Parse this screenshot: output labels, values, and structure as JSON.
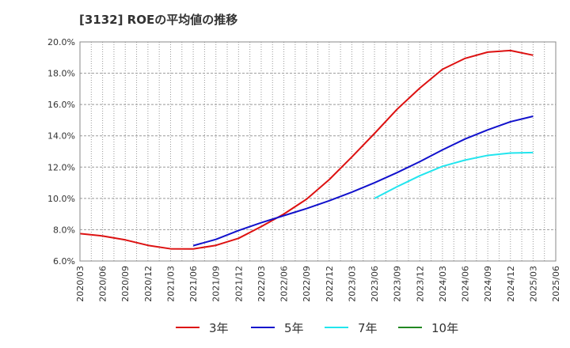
{
  "chart_data": {
    "type": "line",
    "title": "[3132]  ROEの平均値の推移",
    "xlabel": "",
    "ylabel": "",
    "x": [
      "2020/03",
      "2020/06",
      "2020/09",
      "2020/12",
      "2021/03",
      "2021/06",
      "2021/09",
      "2021/12",
      "2022/03",
      "2022/06",
      "2022/09",
      "2022/12",
      "2023/03",
      "2023/06",
      "2023/09",
      "2023/12",
      "2024/03",
      "2024/06",
      "2024/09",
      "2024/12",
      "2025/03",
      "2025/06"
    ],
    "ylim": [
      6.0,
      20.0
    ],
    "yticks": [
      6.0,
      8.0,
      10.0,
      12.0,
      14.0,
      16.0,
      18.0,
      20.0
    ],
    "ytick_labels": [
      "6.0%",
      "8.0%",
      "10.0%",
      "12.0%",
      "14.0%",
      "16.0%",
      "18.0%",
      "20.0%"
    ],
    "grid": true,
    "legend_position": "bottom",
    "series": [
      {
        "name": "3年",
        "color": "#dd1111",
        "values": [
          7.75,
          7.6,
          7.35,
          7.0,
          6.78,
          6.77,
          7.0,
          7.45,
          8.2,
          9.0,
          9.95,
          11.2,
          12.65,
          14.15,
          15.7,
          17.05,
          18.25,
          18.95,
          19.35,
          19.45,
          19.15,
          null
        ]
      },
      {
        "name": "5年",
        "color": "#1111cc",
        "values": [
          null,
          null,
          null,
          null,
          null,
          6.98,
          7.38,
          7.95,
          8.45,
          8.9,
          9.35,
          9.85,
          10.4,
          11.0,
          11.65,
          12.35,
          13.1,
          13.8,
          14.38,
          14.9,
          15.25,
          null
        ]
      },
      {
        "name": "7年",
        "color": "#22e5ee",
        "values": [
          null,
          null,
          null,
          null,
          null,
          null,
          null,
          null,
          null,
          null,
          null,
          null,
          null,
          10.0,
          10.75,
          11.45,
          12.05,
          12.45,
          12.75,
          12.9,
          12.93,
          null
        ]
      },
      {
        "name": "10年",
        "color": "#228822",
        "values": [
          null,
          null,
          null,
          null,
          null,
          null,
          null,
          null,
          null,
          null,
          null,
          null,
          null,
          null,
          null,
          null,
          null,
          null,
          null,
          null,
          null,
          null
        ]
      }
    ]
  }
}
